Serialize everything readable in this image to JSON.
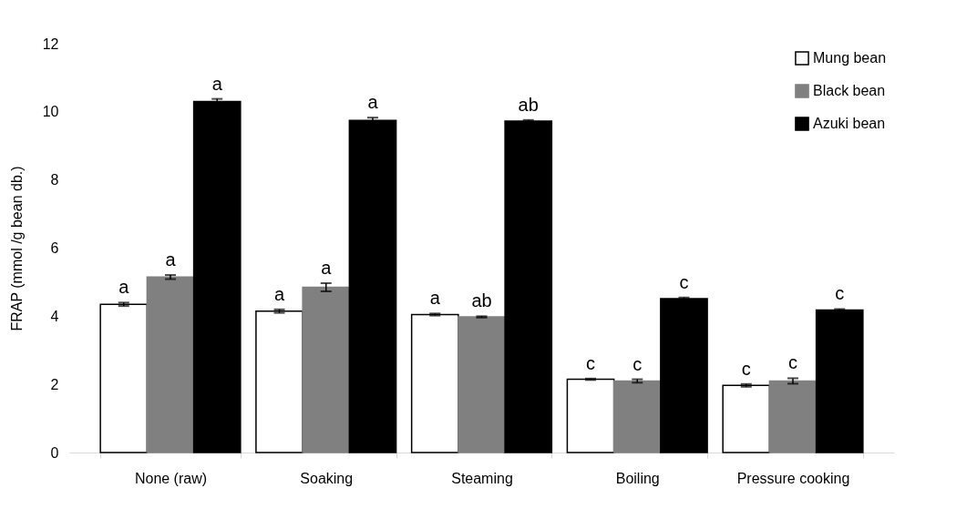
{
  "chart_data": {
    "type": "bar",
    "ylabel": "FRAP (mmol /g bean db.)",
    "categories": [
      "None (raw)",
      "Soaking",
      "Steaming",
      "Boiling",
      "Pressure cooking"
    ],
    "ylim": [
      0,
      12
    ],
    "yticks": [
      0,
      2,
      4,
      6,
      8,
      10,
      12
    ],
    "grid": false,
    "legend": "top right",
    "series": [
      {
        "name": "Mung bean",
        "color": "#ffffff",
        "values": [
          4.35,
          4.15,
          4.05,
          2.15,
          1.97
        ],
        "errors": [
          0.05,
          0.05,
          0.03,
          0.02,
          0.04
        ],
        "value_labels": [
          "a",
          "a",
          "a",
          "c",
          "c"
        ]
      },
      {
        "name": "Black bean",
        "color": "#808080",
        "values": [
          5.15,
          4.85,
          3.98,
          2.1,
          2.1
        ],
        "errors": [
          0.06,
          0.12,
          0.02,
          0.05,
          0.08
        ],
        "value_labels": [
          "a",
          "a",
          "ab",
          "c",
          "c"
        ]
      },
      {
        "name": "Azuki bean",
        "color": "#000000",
        "values": [
          10.3,
          9.75,
          9.73,
          4.52,
          4.18
        ],
        "errors": [
          0.08,
          0.08,
          0.03,
          0.03,
          0.03
        ],
        "value_labels": [
          "a",
          "a",
          "ab",
          "c",
          "c"
        ]
      }
    ]
  }
}
